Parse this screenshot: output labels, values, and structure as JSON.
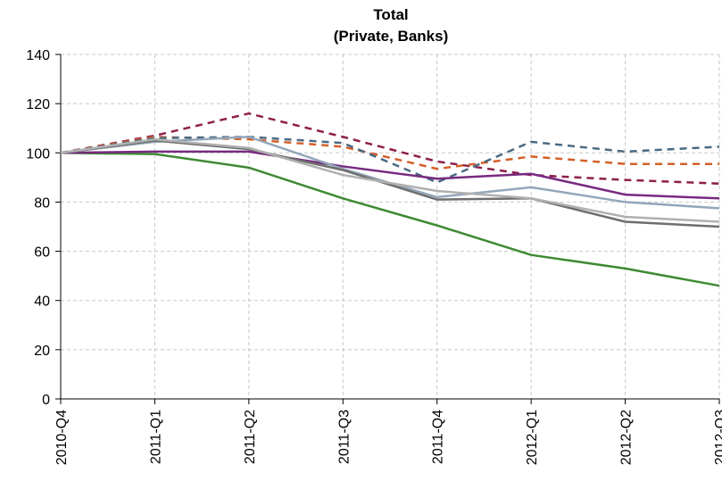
{
  "chart_data": {
    "type": "line",
    "title": "Total",
    "subtitle": "(Private, Banks)",
    "categories": [
      "2010-Q4",
      "2011-Q1",
      "2011-Q2",
      "2011-Q3",
      "2011-Q4",
      "2012-Q1",
      "2012-Q2",
      "2012-Q3"
    ],
    "series": [
      {
        "color": "#3f8a34",
        "dashed": false,
        "values": [
          100,
          99.5,
          94,
          81.5,
          70.5,
          58.5,
          53,
          46
        ]
      },
      {
        "color": "#8e1f4a",
        "dashed": true,
        "values": [
          100,
          107,
          116,
          106.5,
          96.5,
          91,
          89,
          87.5
        ]
      },
      {
        "color": "#d4602a",
        "dashed": true,
        "values": [
          100,
          106.5,
          105.5,
          102.5,
          93.5,
          98.5,
          95.5,
          95.5
        ]
      },
      {
        "color": "#4a6a82",
        "dashed": true,
        "values": [
          100,
          106,
          106.5,
          104,
          88,
          104.5,
          100.5,
          102.5
        ]
      },
      {
        "color": "#772a80",
        "dashed": false,
        "values": [
          100,
          100.5,
          100.5,
          94.5,
          89.5,
          91.5,
          83,
          81.5
        ]
      },
      {
        "color": "#93a6b9",
        "dashed": false,
        "values": [
          100,
          104.5,
          106.5,
          93.5,
          82,
          86,
          80,
          77.5
        ]
      },
      {
        "color": "#6e6e6e",
        "dashed": false,
        "values": [
          100,
          105,
          101.5,
          93,
          81,
          81.5,
          72,
          70
        ]
      },
      {
        "color": "#b0b0b0",
        "dashed": false,
        "values": [
          100,
          105.5,
          102,
          91,
          84.5,
          81.5,
          74,
          72
        ]
      }
    ],
    "ylim": [
      0,
      140
    ],
    "yticks": [
      0,
      20,
      40,
      60,
      80,
      100,
      120,
      140
    ],
    "grid": true
  }
}
